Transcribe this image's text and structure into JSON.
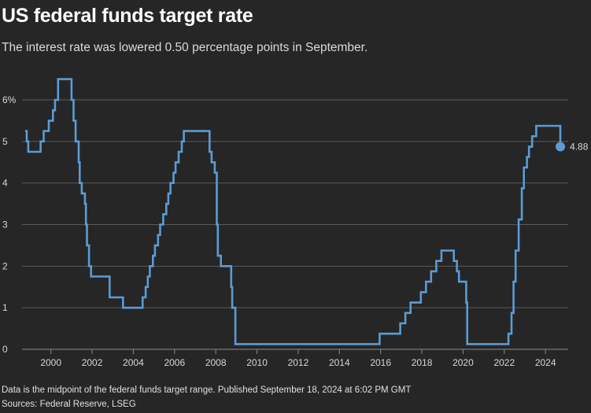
{
  "title": "US federal funds target rate",
  "subtitle": "The interest rate was lowered 0.50 percentage points in September.",
  "footnote": "Data is the midpoint of the federal funds target range. Published September 18, 2024 at 6:02 PM GMT",
  "sources": "Sources: Federal Reserve, LSEG",
  "colors": {
    "background": "#262626",
    "line": "#5b9bd5",
    "grid": "#5a5a5a",
    "text": "#d6d6d6"
  },
  "chart_data": {
    "type": "line",
    "title": "US federal funds target rate",
    "subtitle": "The interest rate was lowered 0.50 percentage points in September.",
    "xlabel": "",
    "ylabel": "",
    "step": true,
    "grid": true,
    "xlim": [
      1998.6,
      2025.1
    ],
    "ylim": [
      0,
      6
    ],
    "x_ticks": [
      2000,
      2002,
      2004,
      2006,
      2008,
      2010,
      2012,
      2014,
      2016,
      2018,
      2020,
      2022,
      2024
    ],
    "x_tick_labels": [
      "2000",
      "2002",
      "2004",
      "2006",
      "2008",
      "2010",
      "2012",
      "2014",
      "2016",
      "2018",
      "2020",
      "2022",
      "2024"
    ],
    "y_ticks": [
      0,
      1,
      2,
      3,
      4,
      5,
      6
    ],
    "y_tick_labels": [
      "0",
      "1",
      "2",
      "3",
      "4",
      "5",
      "6%"
    ],
    "end_label": "4.88",
    "series": [
      {
        "values": [
          [
            1998.75,
            5.25
          ],
          [
            1998.83,
            5.0
          ],
          [
            1998.9,
            4.75
          ],
          [
            1999.5,
            5.0
          ],
          [
            1999.65,
            5.25
          ],
          [
            1999.9,
            5.5
          ],
          [
            2000.1,
            5.75
          ],
          [
            2000.2,
            6.0
          ],
          [
            2000.35,
            6.5
          ],
          [
            2001.0,
            6.0
          ],
          [
            2001.1,
            5.5
          ],
          [
            2001.2,
            5.0
          ],
          [
            2001.35,
            4.5
          ],
          [
            2001.4,
            4.0
          ],
          [
            2001.5,
            3.75
          ],
          [
            2001.65,
            3.5
          ],
          [
            2001.7,
            3.0
          ],
          [
            2001.75,
            2.5
          ],
          [
            2001.85,
            2.0
          ],
          [
            2001.95,
            1.75
          ],
          [
            2002.85,
            1.25
          ],
          [
            2003.5,
            1.0
          ],
          [
            2004.45,
            1.25
          ],
          [
            2004.6,
            1.5
          ],
          [
            2004.7,
            1.75
          ],
          [
            2004.8,
            2.0
          ],
          [
            2004.95,
            2.25
          ],
          [
            2005.05,
            2.5
          ],
          [
            2005.2,
            2.75
          ],
          [
            2005.3,
            3.0
          ],
          [
            2005.45,
            3.25
          ],
          [
            2005.6,
            3.5
          ],
          [
            2005.7,
            3.75
          ],
          [
            2005.8,
            4.0
          ],
          [
            2005.95,
            4.25
          ],
          [
            2006.05,
            4.5
          ],
          [
            2006.2,
            4.75
          ],
          [
            2006.35,
            5.0
          ],
          [
            2006.45,
            5.25
          ],
          [
            2007.7,
            4.75
          ],
          [
            2007.8,
            4.5
          ],
          [
            2007.95,
            4.25
          ],
          [
            2008.05,
            3.0
          ],
          [
            2008.1,
            2.25
          ],
          [
            2008.25,
            2.0
          ],
          [
            2008.75,
            1.5
          ],
          [
            2008.8,
            1.0
          ],
          [
            2008.95,
            0.125
          ],
          [
            2015.95,
            0.375
          ],
          [
            2016.95,
            0.625
          ],
          [
            2017.2,
            0.875
          ],
          [
            2017.45,
            1.125
          ],
          [
            2017.95,
            1.375
          ],
          [
            2018.2,
            1.625
          ],
          [
            2018.45,
            1.875
          ],
          [
            2018.7,
            2.125
          ],
          [
            2018.95,
            2.375
          ],
          [
            2019.55,
            2.125
          ],
          [
            2019.7,
            1.875
          ],
          [
            2019.8,
            1.625
          ],
          [
            2020.15,
            1.125
          ],
          [
            2020.2,
            0.125
          ],
          [
            2022.2,
            0.375
          ],
          [
            2022.35,
            0.875
          ],
          [
            2022.45,
            1.625
          ],
          [
            2022.55,
            2.375
          ],
          [
            2022.7,
            3.125
          ],
          [
            2022.85,
            3.875
          ],
          [
            2022.95,
            4.375
          ],
          [
            2023.1,
            4.625
          ],
          [
            2023.2,
            4.875
          ],
          [
            2023.35,
            5.125
          ],
          [
            2023.55,
            5.375
          ],
          [
            2024.72,
            4.875
          ]
        ]
      }
    ]
  }
}
